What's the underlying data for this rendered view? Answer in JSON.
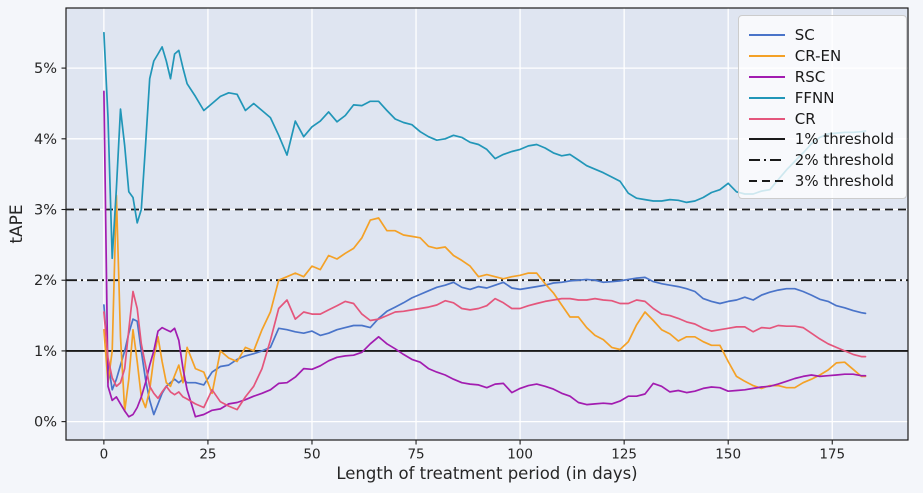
{
  "chart_data": {
    "type": "line",
    "title": "",
    "xlabel": "Length of treatment period (in days)",
    "ylabel": "tAPE",
    "xlim": [
      -9.1,
      193.2
    ],
    "ylim": [
      -0.26,
      5.85
    ],
    "grid": true,
    "legend_position": "upper right",
    "xticks": {
      "values": [
        0,
        25,
        50,
        75,
        100,
        125,
        150,
        175
      ],
      "labels": [
        "0",
        "25",
        "50",
        "75",
        "100",
        "125",
        "150",
        "175"
      ]
    },
    "yticks": {
      "values": [
        0,
        1,
        2,
        3,
        4,
        5
      ],
      "labels": [
        "0%",
        "1%",
        "2%",
        "3%",
        "4%",
        "5%"
      ]
    },
    "x": [
      0,
      1,
      2,
      3,
      4,
      5,
      6,
      7,
      8,
      9,
      10,
      11,
      12,
      13,
      14,
      15,
      16,
      17,
      18,
      19,
      20,
      22,
      24,
      26,
      28,
      30,
      32,
      34,
      36,
      38,
      40,
      42,
      44,
      46,
      48,
      50,
      52,
      54,
      56,
      58,
      60,
      62,
      64,
      66,
      68,
      70,
      72,
      74,
      76,
      78,
      80,
      82,
      84,
      86,
      88,
      90,
      92,
      94,
      96,
      98,
      100,
      102,
      104,
      106,
      108,
      110,
      112,
      114,
      116,
      118,
      120,
      122,
      124,
      126,
      128,
      130,
      132,
      134,
      136,
      138,
      140,
      142,
      144,
      146,
      148,
      150,
      152,
      154,
      156,
      158,
      160,
      162,
      164,
      166,
      168,
      170,
      172,
      174,
      176,
      178,
      180,
      182,
      183
    ],
    "series": [
      {
        "name": "SC",
        "color": "#4a74c9",
        "y": [
          1.65,
          0.85,
          0.45,
          0.6,
          0.8,
          1.0,
          1.25,
          1.45,
          1.42,
          1.0,
          0.6,
          0.3,
          0.1,
          0.25,
          0.4,
          0.5,
          0.55,
          0.6,
          0.55,
          0.6,
          0.55,
          0.55,
          0.52,
          0.7,
          0.78,
          0.8,
          0.88,
          0.93,
          0.96,
          1.0,
          1.05,
          1.32,
          1.3,
          1.27,
          1.25,
          1.28,
          1.22,
          1.25,
          1.3,
          1.33,
          1.36,
          1.36,
          1.33,
          1.46,
          1.56,
          1.62,
          1.68,
          1.75,
          1.8,
          1.85,
          1.9,
          1.93,
          1.97,
          1.9,
          1.87,
          1.91,
          1.89,
          1.93,
          1.97,
          1.89,
          1.87,
          1.89,
          1.91,
          1.93,
          1.96,
          1.97,
          1.99,
          2.0,
          2.01,
          2.0,
          1.97,
          1.98,
          1.99,
          2.01,
          2.03,
          2.04,
          1.98,
          1.95,
          1.93,
          1.91,
          1.88,
          1.84,
          1.74,
          1.7,
          1.67,
          1.7,
          1.72,
          1.76,
          1.72,
          1.79,
          1.83,
          1.86,
          1.88,
          1.88,
          1.84,
          1.79,
          1.73,
          1.7,
          1.64,
          1.61,
          1.57,
          1.54,
          1.53
        ]
      },
      {
        "name": "CR-EN",
        "color": "#f4a126",
        "y": [
          1.3,
          0.55,
          1.0,
          3.2,
          1.2,
          0.15,
          0.6,
          1.3,
          0.85,
          0.35,
          0.2,
          0.45,
          0.9,
          1.2,
          0.85,
          0.55,
          0.5,
          0.65,
          0.8,
          0.55,
          1.05,
          0.75,
          0.7,
          0.4,
          1.0,
          0.9,
          0.85,
          1.05,
          1.0,
          1.3,
          1.55,
          2.0,
          2.05,
          2.1,
          2.05,
          2.2,
          2.15,
          2.35,
          2.3,
          2.38,
          2.45,
          2.6,
          2.85,
          2.88,
          2.7,
          2.7,
          2.64,
          2.62,
          2.6,
          2.48,
          2.45,
          2.47,
          2.35,
          2.28,
          2.2,
          2.05,
          2.08,
          2.05,
          2.02,
          2.05,
          2.07,
          2.1,
          2.1,
          1.95,
          1.82,
          1.65,
          1.48,
          1.48,
          1.33,
          1.22,
          1.16,
          1.05,
          1.02,
          1.13,
          1.37,
          1.55,
          1.43,
          1.3,
          1.24,
          1.14,
          1.2,
          1.2,
          1.13,
          1.08,
          1.08,
          0.85,
          0.64,
          0.57,
          0.51,
          0.47,
          0.51,
          0.51,
          0.48,
          0.48,
          0.55,
          0.6,
          0.66,
          0.73,
          0.83,
          0.84,
          0.74,
          0.64,
          0.64
        ]
      },
      {
        "name": "RSC",
        "color": "#a21cb0",
        "y": [
          4.67,
          0.5,
          0.3,
          0.35,
          0.25,
          0.15,
          0.07,
          0.1,
          0.2,
          0.35,
          0.55,
          0.8,
          1.0,
          1.28,
          1.33,
          1.3,
          1.27,
          1.32,
          1.15,
          0.75,
          0.45,
          0.07,
          0.1,
          0.16,
          0.18,
          0.25,
          0.27,
          0.31,
          0.36,
          0.4,
          0.45,
          0.54,
          0.55,
          0.63,
          0.75,
          0.74,
          0.79,
          0.86,
          0.91,
          0.93,
          0.94,
          0.98,
          1.1,
          1.2,
          1.1,
          1.03,
          0.95,
          0.88,
          0.84,
          0.75,
          0.7,
          0.66,
          0.6,
          0.55,
          0.53,
          0.52,
          0.48,
          0.53,
          0.54,
          0.41,
          0.47,
          0.51,
          0.53,
          0.5,
          0.46,
          0.4,
          0.36,
          0.27,
          0.24,
          0.25,
          0.26,
          0.25,
          0.29,
          0.36,
          0.36,
          0.39,
          0.54,
          0.5,
          0.42,
          0.44,
          0.41,
          0.43,
          0.47,
          0.49,
          0.48,
          0.43,
          0.44,
          0.45,
          0.47,
          0.49,
          0.5,
          0.53,
          0.57,
          0.61,
          0.64,
          0.66,
          0.64,
          0.65,
          0.66,
          0.67,
          0.67,
          0.65,
          0.65
        ]
      },
      {
        "name": "FFNN",
        "color": "#2196b8",
        "y": [
          5.5,
          4.3,
          2.31,
          3.3,
          4.42,
          3.9,
          3.25,
          3.17,
          2.81,
          3.0,
          3.9,
          4.85,
          5.1,
          5.2,
          5.3,
          5.1,
          4.85,
          5.2,
          5.25,
          5.0,
          4.78,
          4.6,
          4.4,
          4.5,
          4.6,
          4.65,
          4.63,
          4.4,
          4.5,
          4.4,
          4.3,
          4.05,
          3.77,
          4.25,
          4.03,
          4.17,
          4.25,
          4.38,
          4.24,
          4.33,
          4.48,
          4.47,
          4.53,
          4.53,
          4.4,
          4.28,
          4.23,
          4.2,
          4.1,
          4.03,
          3.98,
          4.0,
          4.05,
          4.02,
          3.95,
          3.92,
          3.85,
          3.72,
          3.78,
          3.82,
          3.85,
          3.9,
          3.92,
          3.87,
          3.8,
          3.76,
          3.78,
          3.7,
          3.62,
          3.57,
          3.52,
          3.46,
          3.4,
          3.23,
          3.16,
          3.14,
          3.12,
          3.12,
          3.14,
          3.13,
          3.1,
          3.12,
          3.17,
          3.24,
          3.28,
          3.37,
          3.25,
          3.22,
          3.22,
          3.26,
          3.28,
          3.42,
          3.56,
          3.68,
          3.8,
          3.93,
          4.02,
          4.07,
          4.08,
          4.09,
          4.09,
          4.1,
          4.11
        ]
      },
      {
        "name": "CR",
        "color": "#e4567c",
        "y": [
          1.55,
          0.9,
          0.62,
          0.5,
          0.55,
          0.75,
          1.3,
          1.84,
          1.6,
          1.1,
          0.8,
          0.5,
          0.4,
          0.33,
          0.42,
          0.5,
          0.42,
          0.38,
          0.42,
          0.35,
          0.32,
          0.25,
          0.2,
          0.45,
          0.28,
          0.22,
          0.17,
          0.35,
          0.5,
          0.75,
          1.15,
          1.6,
          1.72,
          1.45,
          1.55,
          1.52,
          1.52,
          1.58,
          1.64,
          1.7,
          1.67,
          1.52,
          1.43,
          1.45,
          1.5,
          1.55,
          1.56,
          1.58,
          1.6,
          1.62,
          1.65,
          1.71,
          1.68,
          1.6,
          1.58,
          1.6,
          1.64,
          1.74,
          1.68,
          1.6,
          1.6,
          1.64,
          1.67,
          1.7,
          1.72,
          1.74,
          1.74,
          1.72,
          1.72,
          1.74,
          1.72,
          1.71,
          1.67,
          1.67,
          1.72,
          1.7,
          1.6,
          1.52,
          1.5,
          1.46,
          1.41,
          1.38,
          1.32,
          1.28,
          1.3,
          1.32,
          1.34,
          1.34,
          1.27,
          1.33,
          1.32,
          1.36,
          1.35,
          1.35,
          1.33,
          1.25,
          1.17,
          1.1,
          1.05,
          1.0,
          0.95,
          0.92,
          0.92
        ]
      }
    ],
    "thresholds": [
      {
        "label": "1% threshold",
        "value": 1,
        "style": "solid",
        "color": "#1a1a1a"
      },
      {
        "label": "2% threshold",
        "value": 2,
        "style": "dashdot",
        "color": "#1a1a1a"
      },
      {
        "label": "3% threshold",
        "value": 3,
        "style": "dashed",
        "color": "#1a1a1a"
      }
    ],
    "colors": {
      "plot_bg": "#dfe5f1",
      "figure_bg": "#f4f6fa",
      "grid": "#ffffff",
      "axis": "#1c1c1c",
      "tick_text": "#262626"
    }
  }
}
